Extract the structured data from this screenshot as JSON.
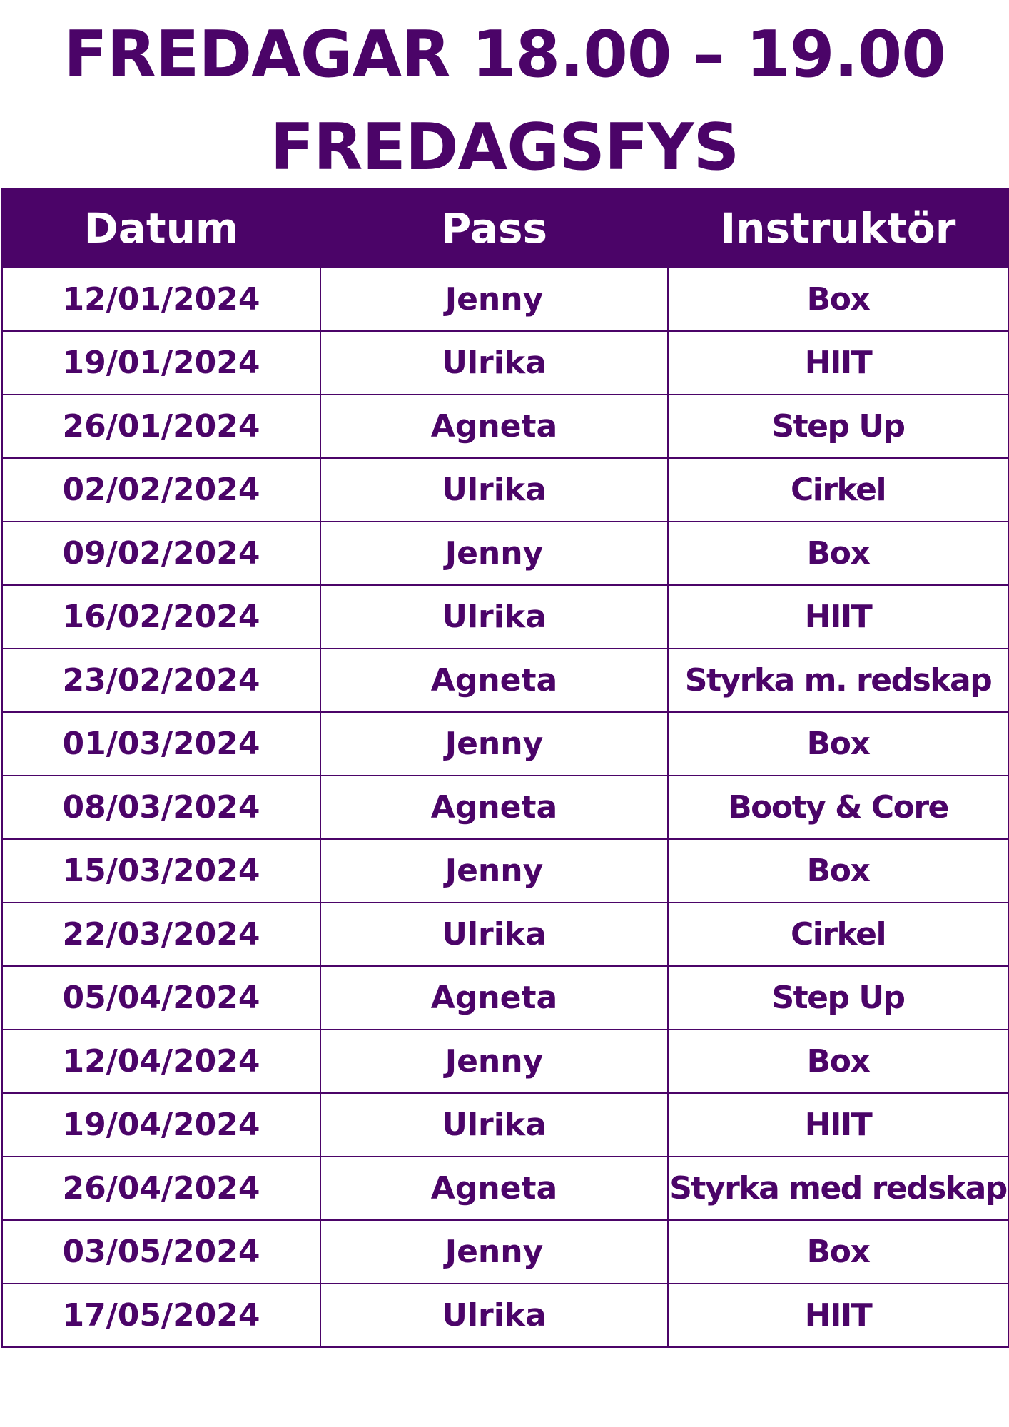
{
  "title": {
    "line1": "FREDAGAR 18.00 – 19.00",
    "line2": "FREDAGSFYS"
  },
  "colors": {
    "accent": "#4b0468",
    "header_text": "#ffffff"
  },
  "table": {
    "headers": [
      "Datum",
      "Pass",
      "Instruktör"
    ],
    "rows": [
      [
        "12/01/2024",
        "Jenny",
        "Box"
      ],
      [
        "19/01/2024",
        "Ulrika",
        "HIIT"
      ],
      [
        "26/01/2024",
        "Agneta",
        "Step Up"
      ],
      [
        "02/02/2024",
        "Ulrika",
        "Cirkel"
      ],
      [
        "09/02/2024",
        "Jenny",
        "Box"
      ],
      [
        "16/02/2024",
        "Ulrika",
        "HIIT"
      ],
      [
        "23/02/2024",
        "Agneta",
        "Styrka m. redskap"
      ],
      [
        "01/03/2024",
        "Jenny",
        "Box"
      ],
      [
        "08/03/2024",
        "Agneta",
        "Booty & Core"
      ],
      [
        "15/03/2024",
        "Jenny",
        "Box"
      ],
      [
        "22/03/2024",
        "Ulrika",
        "Cirkel"
      ],
      [
        "05/04/2024",
        "Agneta",
        "Step Up"
      ],
      [
        "12/04/2024",
        "Jenny",
        "Box"
      ],
      [
        "19/04/2024",
        "Ulrika",
        "HIIT"
      ],
      [
        "26/04/2024",
        "Agneta",
        "Styrka med redskap"
      ],
      [
        "03/05/2024",
        "Jenny",
        "Box"
      ],
      [
        "17/05/2024",
        "Ulrika",
        "HIIT"
      ]
    ]
  }
}
